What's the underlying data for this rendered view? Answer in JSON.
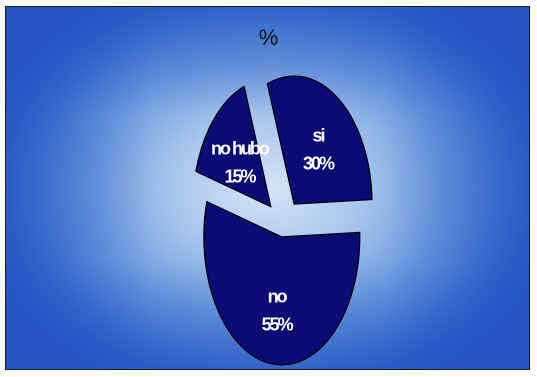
{
  "chart_data": {
    "type": "pie",
    "title": "%",
    "exploded": true,
    "categories": [
      "si",
      "no",
      "no hubo"
    ],
    "values": [
      30,
      55,
      15
    ],
    "percent_labels": [
      "30%",
      "55%",
      "15%"
    ],
    "colors": {
      "slice_fill": "#0b0b75",
      "slice_stroke": "#000000",
      "label_text": "#ffffff"
    }
  }
}
